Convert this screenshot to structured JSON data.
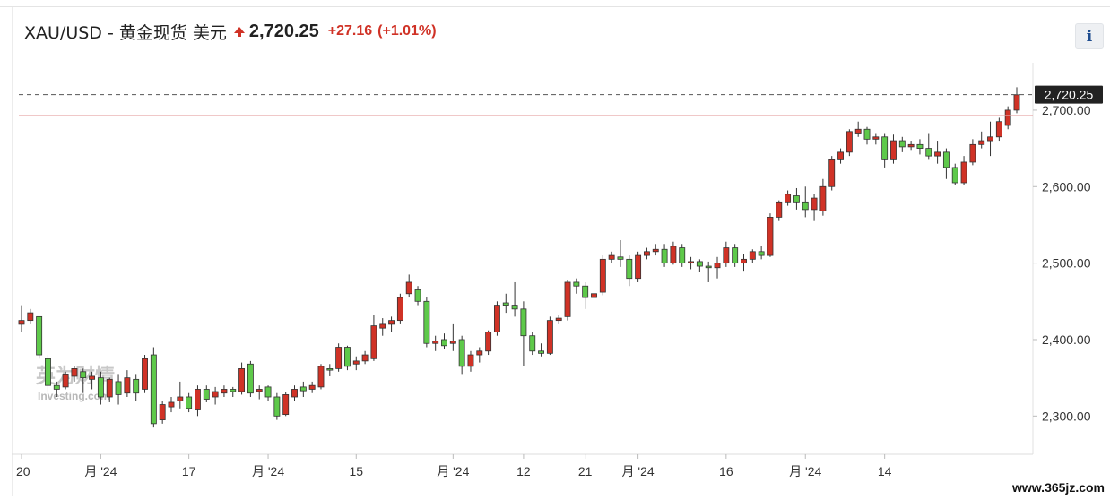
{
  "header": {
    "title": "XAU/USD - 黄金现货 美元",
    "price": "2,720.25",
    "change": "+27.16",
    "change_pct": "(+1.01%)",
    "info_label": "i",
    "up_color": "#d03226"
  },
  "watermark": {
    "line1": "英为财情",
    "line2": "Investing.com",
    "site": "www.365jz.com"
  },
  "chart_data": {
    "type": "candlestick",
    "y_ticks": [
      "2,700.00",
      "2,600.00",
      "2,500.00",
      "2,400.00",
      "2,300.00"
    ],
    "y_tick_values": [
      2700,
      2600,
      2500,
      2400,
      2300
    ],
    "ylim": [
      2250,
      2762
    ],
    "x_ticks": [
      {
        "label": "20",
        "index": 0
      },
      {
        "label": "月 '24",
        "index": 9
      },
      {
        "label": "17",
        "index": 19
      },
      {
        "label": "月 '24",
        "index": 28
      },
      {
        "label": "15",
        "index": 38
      },
      {
        "label": "月 '24",
        "index": 49
      },
      {
        "label": "12",
        "index": 57
      },
      {
        "label": "21",
        "index": 64
      },
      {
        "label": "月 '24",
        "index": 70
      },
      {
        "label": "16",
        "index": 80
      },
      {
        "label": "月 '24",
        "index": 89
      },
      {
        "label": "14",
        "index": 98
      }
    ],
    "last_price": 2720.25,
    "last_price_label": "2,720.25",
    "prev_close": 2693.09,
    "up_color": "#d03226",
    "down_color": "#5ec94a",
    "candles": [
      [
        2420,
        2425,
        2410,
        2445
      ],
      [
        2425,
        2435,
        2420,
        2440
      ],
      [
        2430,
        2380,
        2375,
        2430
      ],
      [
        2375,
        2340,
        2330,
        2380
      ],
      [
        2340,
        2335,
        2325,
        2345
      ],
      [
        2338,
        2355,
        2335,
        2358
      ],
      [
        2352,
        2362,
        2345,
        2365
      ],
      [
        2358,
        2350,
        2330,
        2362
      ],
      [
        2348,
        2352,
        2335,
        2358
      ],
      [
        2350,
        2325,
        2315,
        2358
      ],
      [
        2325,
        2348,
        2318,
        2350
      ],
      [
        2345,
        2328,
        2315,
        2355
      ],
      [
        2330,
        2350,
        2325,
        2360
      ],
      [
        2348,
        2330,
        2320,
        2355
      ],
      [
        2335,
        2375,
        2330,
        2380
      ],
      [
        2380,
        2290,
        2285,
        2390
      ],
      [
        2295,
        2315,
        2290,
        2320
      ],
      [
        2312,
        2318,
        2305,
        2325
      ],
      [
        2320,
        2325,
        2310,
        2345
      ],
      [
        2325,
        2310,
        2305,
        2330
      ],
      [
        2308,
        2335,
        2300,
        2340
      ],
      [
        2335,
        2322,
        2318,
        2340
      ],
      [
        2325,
        2332,
        2315,
        2338
      ],
      [
        2330,
        2335,
        2325,
        2340
      ],
      [
        2335,
        2332,
        2325,
        2338
      ],
      [
        2332,
        2362,
        2328,
        2370
      ],
      [
        2368,
        2330,
        2325,
        2372
      ],
      [
        2332,
        2335,
        2322,
        2340
      ],
      [
        2338,
        2325,
        2320,
        2340
      ],
      [
        2325,
        2300,
        2295,
        2330
      ],
      [
        2302,
        2328,
        2300,
        2332
      ],
      [
        2325,
        2335,
        2320,
        2340
      ],
      [
        2338,
        2333,
        2325,
        2345
      ],
      [
        2335,
        2340,
        2330,
        2345
      ],
      [
        2338,
        2365,
        2335,
        2368
      ],
      [
        2362,
        2360,
        2352,
        2368
      ],
      [
        2362,
        2390,
        2358,
        2395
      ],
      [
        2390,
        2365,
        2360,
        2392
      ],
      [
        2368,
        2372,
        2360,
        2378
      ],
      [
        2372,
        2380,
        2368,
        2385
      ],
      [
        2375,
        2418,
        2372,
        2432
      ],
      [
        2415,
        2420,
        2405,
        2428
      ],
      [
        2420,
        2425,
        2410,
        2430
      ],
      [
        2425,
        2455,
        2420,
        2460
      ],
      [
        2460,
        2475,
        2455,
        2485
      ],
      [
        2465,
        2450,
        2445,
        2470
      ],
      [
        2450,
        2395,
        2390,
        2455
      ],
      [
        2395,
        2398,
        2385,
        2405
      ],
      [
        2400,
        2392,
        2388,
        2408
      ],
      [
        2395,
        2398,
        2385,
        2420
      ],
      [
        2400,
        2365,
        2355,
        2405
      ],
      [
        2365,
        2380,
        2358,
        2385
      ],
      [
        2380,
        2385,
        2370,
        2390
      ],
      [
        2385,
        2410,
        2380,
        2412
      ],
      [
        2410,
        2445,
        2405,
        2450
      ],
      [
        2448,
        2445,
        2435,
        2460
      ],
      [
        2445,
        2440,
        2430,
        2475
      ],
      [
        2440,
        2405,
        2365,
        2450
      ],
      [
        2405,
        2385,
        2380,
        2410
      ],
      [
        2385,
        2382,
        2378,
        2395
      ],
      [
        2382,
        2425,
        2380,
        2430
      ],
      [
        2425,
        2428,
        2420,
        2432
      ],
      [
        2430,
        2475,
        2425,
        2478
      ],
      [
        2475,
        2470,
        2460,
        2480
      ],
      [
        2470,
        2455,
        2440,
        2475
      ],
      [
        2455,
        2460,
        2445,
        2468
      ],
      [
        2462,
        2505,
        2458,
        2510
      ],
      [
        2505,
        2510,
        2500,
        2515
      ],
      [
        2508,
        2505,
        2495,
        2530
      ],
      [
        2505,
        2480,
        2470,
        2510
      ],
      [
        2480,
        2510,
        2475,
        2515
      ],
      [
        2510,
        2515,
        2505,
        2520
      ],
      [
        2515,
        2518,
        2510,
        2525
      ],
      [
        2518,
        2500,
        2495,
        2525
      ],
      [
        2500,
        2522,
        2498,
        2528
      ],
      [
        2520,
        2500,
        2495,
        2525
      ],
      [
        2500,
        2502,
        2492,
        2508
      ],
      [
        2502,
        2496,
        2488,
        2505
      ],
      [
        2496,
        2494,
        2475,
        2502
      ],
      [
        2494,
        2500,
        2480,
        2508
      ],
      [
        2500,
        2520,
        2495,
        2528
      ],
      [
        2520,
        2500,
        2495,
        2525
      ],
      [
        2500,
        2505,
        2490,
        2512
      ],
      [
        2505,
        2515,
        2500,
        2518
      ],
      [
        2515,
        2510,
        2505,
        2522
      ],
      [
        2510,
        2560,
        2508,
        2565
      ],
      [
        2560,
        2580,
        2555,
        2582
      ],
      [
        2580,
        2590,
        2575,
        2595
      ],
      [
        2588,
        2580,
        2570,
        2598
      ],
      [
        2580,
        2570,
        2560,
        2600
      ],
      [
        2570,
        2585,
        2555,
        2590
      ],
      [
        2568,
        2600,
        2562,
        2610
      ],
      [
        2600,
        2635,
        2595,
        2640
      ],
      [
        2635,
        2645,
        2630,
        2650
      ],
      [
        2645,
        2672,
        2640,
        2675
      ],
      [
        2670,
        2675,
        2665,
        2685
      ],
      [
        2675,
        2662,
        2655,
        2678
      ],
      [
        2662,
        2665,
        2655,
        2670
      ],
      [
        2665,
        2635,
        2625,
        2670
      ],
      [
        2635,
        2660,
        2630,
        2668
      ],
      [
        2660,
        2652,
        2645,
        2665
      ],
      [
        2652,
        2655,
        2648,
        2660
      ],
      [
        2655,
        2650,
        2642,
        2662
      ],
      [
        2650,
        2640,
        2635,
        2670
      ],
      [
        2640,
        2645,
        2630,
        2660
      ],
      [
        2645,
        2625,
        2610,
        2650
      ],
      [
        2625,
        2605,
        2602,
        2630
      ],
      [
        2605,
        2632,
        2602,
        2640
      ],
      [
        2632,
        2655,
        2628,
        2662
      ],
      [
        2655,
        2660,
        2650,
        2672
      ],
      [
        2660,
        2665,
        2640,
        2685
      ],
      [
        2665,
        2685,
        2660,
        2690
      ],
      [
        2680,
        2700,
        2675,
        2705
      ],
      [
        2700,
        2720,
        2696,
        2730
      ]
    ]
  }
}
